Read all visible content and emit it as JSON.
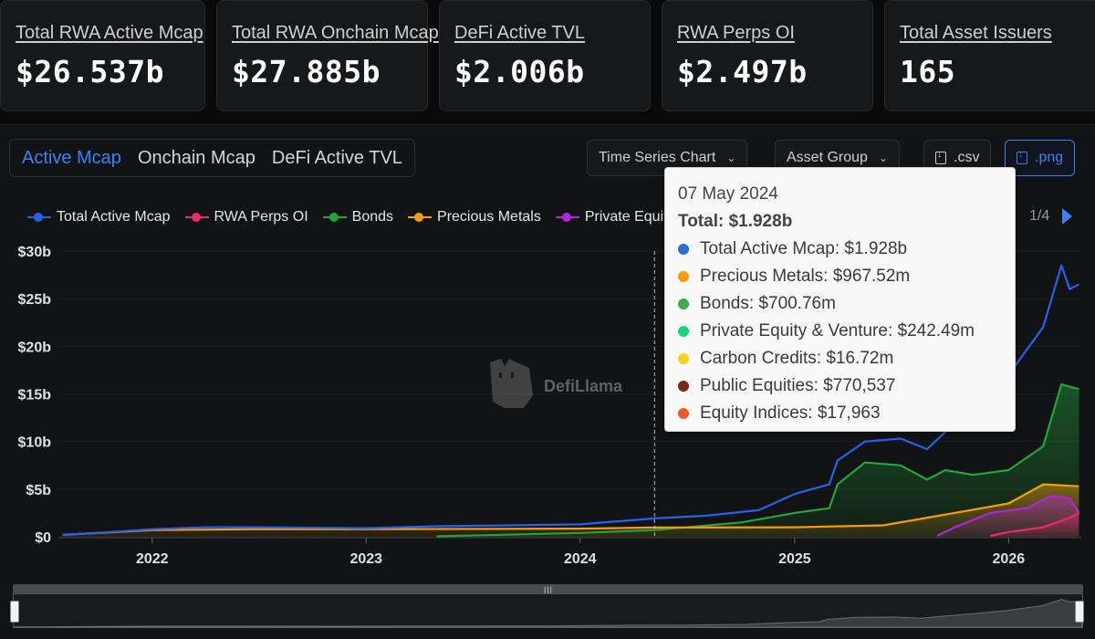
{
  "stats": [
    {
      "label": "Total RWA Active Mcap",
      "value": "$26.537b"
    },
    {
      "label": "Total RWA Onchain Mcap",
      "value": "$27.885b"
    },
    {
      "label": "DeFi Active TVL",
      "value": "$2.006b"
    },
    {
      "label": "RWA Perps OI",
      "value": "$2.497b"
    },
    {
      "label": "Total Asset Issuers",
      "value": "165"
    }
  ],
  "tabs": [
    "Active Mcap",
    "Onchain Mcap",
    "DeFi Active TVL"
  ],
  "active_tab": "Active Mcap",
  "controls": {
    "time_series": "Time Series Chart",
    "asset_group": "Asset Group",
    "csv": ".csv",
    "png": ".png"
  },
  "legend": {
    "items": [
      {
        "name": "Total Active Mcap",
        "color": "#2563eb"
      },
      {
        "name": "RWA Perps OI",
        "color": "#ec2a6d"
      },
      {
        "name": "Bonds",
        "color": "#22a53a"
      },
      {
        "name": "Precious Metals",
        "color": "#f59e0b"
      },
      {
        "name": "Private Equity & Venture",
        "color": "#b026d9"
      }
    ],
    "page": "1/4"
  },
  "tooltip": {
    "date": "07 May 2024",
    "total": "Total: $1.928b",
    "rows": [
      {
        "text": "Total Active Mcap: $1.928b",
        "color": "#2b6fd6"
      },
      {
        "text": "Precious Metals: $967.52m",
        "color": "#f39c12"
      },
      {
        "text": "Bonds: $700.76m",
        "color": "#3fae49"
      },
      {
        "text": "Private Equity & Venture: $242.49m",
        "color": "#19d47a"
      },
      {
        "text": "Carbon Credits: $16.72m",
        "color": "#f7d21b"
      },
      {
        "text": "Public Equities: $770,537",
        "color": "#7a2a10"
      },
      {
        "text": "Equity Indices: $17,963",
        "color": "#f0572a"
      }
    ]
  },
  "watermark": "DefiLlama",
  "chart_data": {
    "type": "area",
    "x_ticks": [
      "2022",
      "2023",
      "2024",
      "2025",
      "2026"
    ],
    "y_ticks": [
      "$0",
      "$5b",
      "$10b",
      "$15b",
      "$20b",
      "$25b",
      "$30b"
    ],
    "ylim": [
      0,
      30
    ],
    "y_unit": "billions USD",
    "hover_date": "07 May 2024",
    "series": [
      {
        "name": "Total Active Mcap",
        "color": "#2563eb",
        "points": [
          [
            "2021-08-01",
            0.2
          ],
          [
            "2021-10-01",
            0.4
          ],
          [
            "2022-01-01",
            0.8
          ],
          [
            "2022-04-01",
            1.0
          ],
          [
            "2022-07-01",
            1.0
          ],
          [
            "2023-01-01",
            0.9
          ],
          [
            "2023-05-01",
            1.1
          ],
          [
            "2023-09-01",
            1.2
          ],
          [
            "2024-01-01",
            1.3
          ],
          [
            "2024-05-07",
            1.93
          ],
          [
            "2024-08-01",
            2.2
          ],
          [
            "2024-11-01",
            2.8
          ],
          [
            "2025-01-01",
            4.5
          ],
          [
            "2025-03-01",
            5.5
          ],
          [
            "2025-03-15",
            8.0
          ],
          [
            "2025-05-01",
            10.0
          ],
          [
            "2025-07-01",
            10.3
          ],
          [
            "2025-08-15",
            9.2
          ],
          [
            "2025-09-15",
            11.0
          ],
          [
            "2025-11-01",
            13.5
          ],
          [
            "2026-01-01",
            17.0
          ],
          [
            "2026-03-01",
            22.0
          ],
          [
            "2026-04-01",
            28.5
          ],
          [
            "2026-04-15",
            26.0
          ],
          [
            "2026-05-01",
            26.5
          ]
        ]
      },
      {
        "name": "Bonds",
        "color": "#22a53a",
        "points": [
          [
            "2023-05-01",
            0.05
          ],
          [
            "2024-01-01",
            0.4
          ],
          [
            "2024-05-07",
            0.7
          ],
          [
            "2024-10-01",
            1.5
          ],
          [
            "2025-01-01",
            2.5
          ],
          [
            "2025-03-01",
            3.0
          ],
          [
            "2025-03-15",
            5.5
          ],
          [
            "2025-05-01",
            7.8
          ],
          [
            "2025-07-01",
            7.5
          ],
          [
            "2025-08-15",
            6.0
          ],
          [
            "2025-09-15",
            7.0
          ],
          [
            "2025-11-01",
            6.5
          ],
          [
            "2026-01-01",
            7.0
          ],
          [
            "2026-03-01",
            9.5
          ],
          [
            "2026-04-01",
            16.0
          ],
          [
            "2026-05-01",
            15.5
          ]
        ]
      },
      {
        "name": "Precious Metals",
        "color": "#f59e0b",
        "points": [
          [
            "2021-08-01",
            0.2
          ],
          [
            "2022-01-01",
            0.7
          ],
          [
            "2022-07-01",
            0.8
          ],
          [
            "2023-01-01",
            0.8
          ],
          [
            "2024-01-01",
            0.85
          ],
          [
            "2024-05-07",
            0.97
          ],
          [
            "2025-01-01",
            1.0
          ],
          [
            "2025-06-01",
            1.2
          ],
          [
            "2025-10-01",
            2.5
          ],
          [
            "2026-01-01",
            3.5
          ],
          [
            "2026-03-01",
            5.5
          ],
          [
            "2026-05-01",
            5.3
          ]
        ]
      },
      {
        "name": "Private Equity & Venture",
        "color": "#b026d9",
        "points": [
          [
            "2025-09-01",
            0.1
          ],
          [
            "2025-10-01",
            1.0
          ],
          [
            "2025-12-01",
            2.5
          ],
          [
            "2026-02-01",
            3.0
          ],
          [
            "2026-03-15",
            4.3
          ],
          [
            "2026-04-15",
            4.0
          ],
          [
            "2026-05-01",
            2.5
          ]
        ]
      },
      {
        "name": "RWA Perps OI",
        "color": "#ec2a6d",
        "points": [
          [
            "2025-12-01",
            0.1
          ],
          [
            "2026-01-01",
            0.5
          ],
          [
            "2026-03-01",
            1.0
          ],
          [
            "2026-04-15",
            2.0
          ],
          [
            "2026-05-01",
            2.5
          ]
        ]
      }
    ]
  }
}
